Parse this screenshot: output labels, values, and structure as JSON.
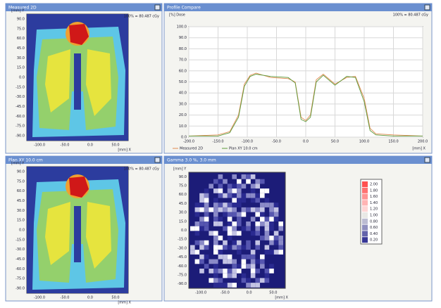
{
  "windows": [
    {
      "title": "Measured 2D",
      "ylabel": "[mm] Y",
      "norm": "100% = 80.487 cGy",
      "xlabel": "[mm] X",
      "yticks": [
        "90.0",
        "75.0",
        "60.0",
        "45.0",
        "30.0",
        "15.0",
        "0.0",
        "-15.0",
        "-30.0",
        "-45.0",
        "-60.0",
        "-75.0",
        "-90.0"
      ],
      "xticks": [
        "-100.0",
        "-50.0",
        "0.0",
        "50.0"
      ]
    },
    {
      "title": "Plan XY 10.0 cm",
      "ylabel": "[mm] Y",
      "norm": "100% = 80.487 cGy",
      "xlabel": "[mm] X",
      "yticks": [
        "90.0",
        "75.0",
        "60.0",
        "45.0",
        "30.0",
        "15.0",
        "0.0",
        "-15.0",
        "-30.0",
        "-45.0",
        "-60.0",
        "-75.0",
        "-90.0"
      ],
      "xticks": [
        "-100.0",
        "-50.0",
        "0.0",
        "50.0"
      ]
    }
  ],
  "profile": {
    "title": "Profile Compare",
    "ylabel": "[%] Dose",
    "norm": "100% = 80.487 cGy",
    "xlabel": "[mm] X",
    "xlim": [
      -200,
      200
    ],
    "ylim": [
      0,
      100
    ],
    "xticks": [
      {
        "value": -200,
        "label": "-200.0"
      },
      {
        "value": -150,
        "label": "-150.0"
      },
      {
        "value": -100,
        "label": "-100.0"
      },
      {
        "value": -50,
        "label": "-50.0"
      },
      {
        "value": 0,
        "label": "0.0"
      },
      {
        "value": 50,
        "label": "50.0"
      },
      {
        "value": 100,
        "label": "100.0"
      },
      {
        "value": 150,
        "label": "150.0"
      },
      {
        "value": 200,
        "label": "200.0"
      }
    ],
    "yticks": [
      {
        "value": 0,
        "label": "0.0"
      },
      {
        "value": 10,
        "label": "10.0"
      },
      {
        "value": 20,
        "label": "20.0"
      },
      {
        "value": 30,
        "label": "30.0"
      },
      {
        "value": 40,
        "label": "40.0"
      },
      {
        "value": 50,
        "label": "50.0"
      },
      {
        "value": 60,
        "label": "60.0"
      },
      {
        "value": 70,
        "label": "70.0"
      },
      {
        "value": 80,
        "label": "80.0"
      },
      {
        "value": 90,
        "label": "90.0"
      },
      {
        "value": 100,
        "label": "100.0"
      }
    ],
    "x": [
      -200,
      -150,
      -130,
      -115,
      -105,
      -95,
      -85,
      -60,
      -30,
      -18,
      -8,
      0,
      8,
      18,
      30,
      50,
      70,
      85,
      100,
      110,
      120,
      150,
      200
    ],
    "series": [
      {
        "name": "Measured 2D",
        "color": "#e08a50",
        "values": [
          1,
          2,
          5,
          20,
          48,
          56,
          58,
          54,
          53,
          50,
          18,
          15,
          20,
          52,
          57,
          48,
          54,
          55,
          35,
          8,
          3,
          2,
          1
        ]
      },
      {
        "name": "Plan XY 10.0 cm",
        "color": "#5a9a3a",
        "values": [
          1,
          1,
          4,
          18,
          46,
          55,
          57,
          55,
          54,
          49,
          16,
          14,
          18,
          50,
          56,
          47,
          55,
          54,
          32,
          6,
          2,
          1,
          1
        ]
      }
    ]
  },
  "gamma": {
    "title": "Gamma 3.0 %, 3.0 mm",
    "ylabel": "[mm] Y",
    "xlabel": "[mm] X",
    "yticks": [
      "90.0",
      "75.0",
      "60.0",
      "45.0",
      "30.0",
      "15.0",
      "0.0",
      "-15.0",
      "-30.0",
      "-45.0",
      "-60.0",
      "-75.0",
      "-90.0"
    ],
    "xticks": [
      "-100.0",
      "-50.0",
      "0.0",
      "50.0"
    ],
    "scale": [
      "2.00",
      "1.80",
      "1.60",
      "1.40",
      "1.20",
      "1.00",
      "0.80",
      "0.60",
      "0.40",
      "0.20"
    ]
  }
}
